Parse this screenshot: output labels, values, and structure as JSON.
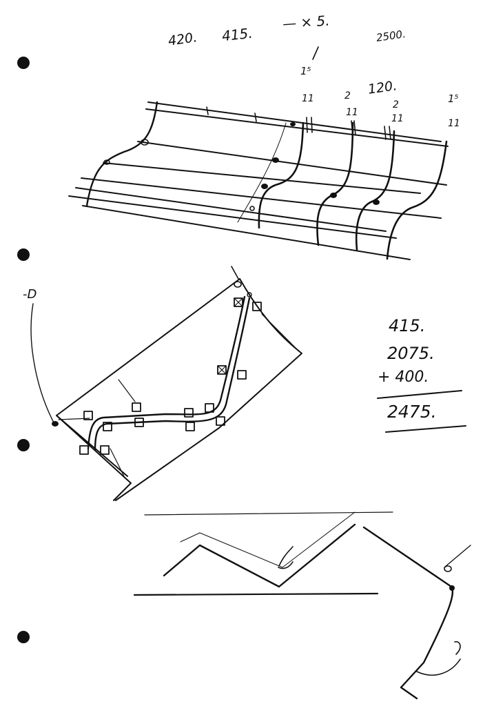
{
  "annotations": {
    "top_numbers": [
      "420.",
      "415.",
      "— × 5.",
      "2500."
    ],
    "dim_marks": [
      "1⁵",
      "11",
      "2",
      "11",
      "120.",
      "2",
      "11",
      "1⁵",
      "11"
    ],
    "small_label": "-D",
    "sum": {
      "first": "415.",
      "second": "2075.",
      "add": "+ 400.",
      "total": "2475."
    }
  },
  "colors": {
    "ink": "#111111",
    "paper": "#ffffff",
    "faint": "#555555"
  }
}
